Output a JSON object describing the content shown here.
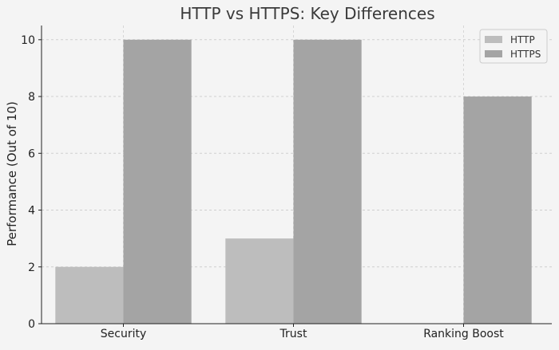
{
  "chart_data": {
    "type": "bar",
    "title": "HTTP vs HTTPS: Key Differences",
    "xlabel": "",
    "ylabel": "Performance (Out of 10)",
    "categories": [
      "Security",
      "Trust",
      "Ranking Boost"
    ],
    "series": [
      {
        "name": "HTTP",
        "values": [
          2,
          3,
          0
        ],
        "color": "#bdbdbd"
      },
      {
        "name": "HTTPS",
        "values": [
          10,
          10,
          8
        ],
        "color": "#a4a4a4"
      }
    ],
    "ylim": [
      0,
      10.5
    ],
    "yticks": [
      0,
      2,
      4,
      6,
      8,
      10
    ],
    "grid": true,
    "legend_position": "top-right",
    "background": "#f4f4f4"
  }
}
